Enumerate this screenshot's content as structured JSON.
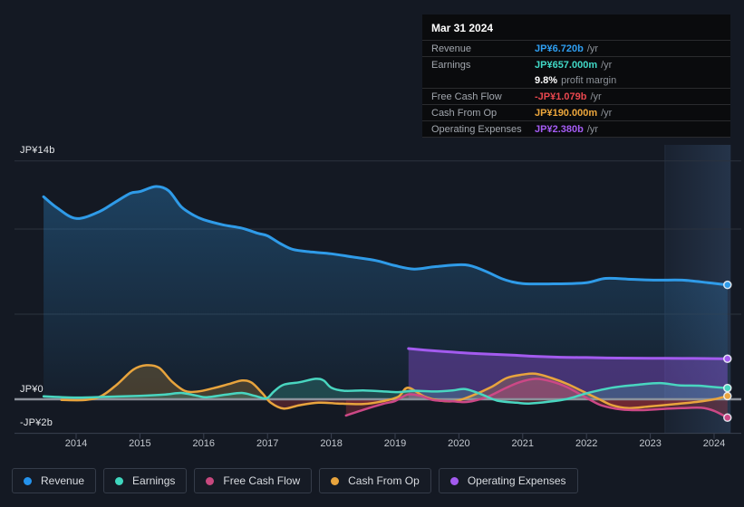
{
  "tooltip": {
    "date": "Mar 31 2024",
    "rows": [
      {
        "label": "Revenue",
        "value": "JP¥6.720b",
        "suffix": "/yr",
        "color": "#2F9FF2",
        "bordered": true
      },
      {
        "label": "Earnings",
        "value": "JP¥657.000m",
        "suffix": "/yr",
        "color": "#41D9C7",
        "bordered": false
      },
      {
        "label": "",
        "value": "9.8%",
        "suffix": "profit margin",
        "color": "#FFFFFF",
        "bordered": true
      },
      {
        "label": "Free Cash Flow",
        "value": "-JP¥1.079b",
        "suffix": "/yr",
        "color": "#E8474E",
        "bordered": true
      },
      {
        "label": "Cash From Op",
        "value": "JP¥190.000m",
        "suffix": "/yr",
        "color": "#EDA73C",
        "bordered": true
      },
      {
        "label": "Operating Expenses",
        "value": "JP¥2.380b",
        "suffix": "/yr",
        "color": "#A55CF4",
        "bordered": true
      }
    ]
  },
  "legend": {
    "items": [
      {
        "label": "Revenue",
        "color": "#2492EC"
      },
      {
        "label": "Earnings",
        "color": "#3FD6BE"
      },
      {
        "label": "Free Cash Flow",
        "color": "#C7487E"
      },
      {
        "label": "Cash From Op",
        "color": "#E8A43D"
      },
      {
        "label": "Operating Expenses",
        "color": "#A35BEF"
      }
    ]
  },
  "chart_data": {
    "type": "area",
    "unit": "JP¥ billions per year",
    "x_ticks": [
      2014,
      2015,
      2016,
      2017,
      2018,
      2019,
      2020,
      2021,
      2022,
      2023,
      2024
    ],
    "y_tick_labels": [
      {
        "text": "JP¥14b",
        "value": 14
      },
      {
        "text": "JP¥0",
        "value": 0
      },
      {
        "text": "-JP¥2b",
        "value": -2
      }
    ],
    "gridline_values": [
      14,
      10,
      5
    ],
    "baseline_value": -2,
    "ylim": [
      -2,
      14.9
    ],
    "xlim": [
      2013.45,
      2024.45
    ],
    "legend_position": "bottom",
    "grid_color": "#2B323E",
    "axis_color": "#3A4150",
    "zero_line_color": "#8C929B",
    "negative_fill": "rgba(200,55,65,0.30)",
    "highlight_band_years": [
      2023.23,
      2024.26
    ],
    "series": [
      {
        "name": "Revenue",
        "color": "#2F9BE8",
        "fill": "rgba(47,143,214,0.30)",
        "width": 3,
        "points": [
          [
            2013.49,
            11.9
          ],
          [
            2013.7,
            11.25
          ],
          [
            2014.0,
            10.62
          ],
          [
            2014.35,
            11.0
          ],
          [
            2014.6,
            11.55
          ],
          [
            2014.85,
            12.1
          ],
          [
            2015.0,
            12.2
          ],
          [
            2015.25,
            12.5
          ],
          [
            2015.45,
            12.25
          ],
          [
            2015.65,
            11.3
          ],
          [
            2015.85,
            10.8
          ],
          [
            2016.0,
            10.55
          ],
          [
            2016.3,
            10.25
          ],
          [
            2016.6,
            10.05
          ],
          [
            2016.85,
            9.75
          ],
          [
            2017.0,
            9.6
          ],
          [
            2017.2,
            9.15
          ],
          [
            2017.4,
            8.8
          ],
          [
            2017.7,
            8.65
          ],
          [
            2018.0,
            8.55
          ],
          [
            2018.35,
            8.35
          ],
          [
            2018.7,
            8.15
          ],
          [
            2019.0,
            7.85
          ],
          [
            2019.3,
            7.65
          ],
          [
            2019.65,
            7.8
          ],
          [
            2020.1,
            7.9
          ],
          [
            2020.4,
            7.55
          ],
          [
            2020.7,
            7.05
          ],
          [
            2021.0,
            6.8
          ],
          [
            2021.5,
            6.78
          ],
          [
            2022.0,
            6.85
          ],
          [
            2022.3,
            7.1
          ],
          [
            2022.7,
            7.05
          ],
          [
            2023.1,
            7.0
          ],
          [
            2023.5,
            7.0
          ],
          [
            2023.9,
            6.85
          ],
          [
            2024.21,
            6.72
          ]
        ]
      },
      {
        "name": "Operating Expenses",
        "color": "#A35BEF",
        "fill": "rgba(147,82,224,0.38)",
        "width": 3,
        "points": [
          [
            2019.21,
            2.98
          ],
          [
            2019.5,
            2.88
          ],
          [
            2019.9,
            2.77
          ],
          [
            2020.3,
            2.68
          ],
          [
            2020.8,
            2.6
          ],
          [
            2021.2,
            2.52
          ],
          [
            2021.6,
            2.47
          ],
          [
            2022.0,
            2.45
          ],
          [
            2022.5,
            2.42
          ],
          [
            2023.0,
            2.41
          ],
          [
            2023.5,
            2.4
          ],
          [
            2024.0,
            2.39
          ],
          [
            2024.21,
            2.38
          ]
        ]
      },
      {
        "name": "Cash From Op",
        "color": "#E8A43D",
        "fill": "rgba(235,168,60,0.22)",
        "width": 2.5,
        "points": [
          [
            2013.77,
            -0.04
          ],
          [
            2014.15,
            -0.04
          ],
          [
            2014.4,
            0.2
          ],
          [
            2014.65,
            0.9
          ],
          [
            2014.9,
            1.75
          ],
          [
            2015.1,
            2.0
          ],
          [
            2015.3,
            1.85
          ],
          [
            2015.5,
            1.05
          ],
          [
            2015.7,
            0.5
          ],
          [
            2015.9,
            0.45
          ],
          [
            2016.15,
            0.65
          ],
          [
            2016.4,
            0.9
          ],
          [
            2016.6,
            1.1
          ],
          [
            2016.75,
            0.98
          ],
          [
            2016.92,
            0.35
          ],
          [
            2017.05,
            -0.2
          ],
          [
            2017.25,
            -0.55
          ],
          [
            2017.5,
            -0.35
          ],
          [
            2017.8,
            -0.2
          ],
          [
            2018.1,
            -0.25
          ],
          [
            2018.5,
            -0.28
          ],
          [
            2018.8,
            -0.12
          ],
          [
            2019.05,
            0.15
          ],
          [
            2019.2,
            0.68
          ],
          [
            2019.45,
            0.18
          ],
          [
            2019.7,
            -0.08
          ],
          [
            2019.95,
            -0.1
          ],
          [
            2020.2,
            0.2
          ],
          [
            2020.5,
            0.7
          ],
          [
            2020.75,
            1.25
          ],
          [
            2021.0,
            1.45
          ],
          [
            2021.2,
            1.5
          ],
          [
            2021.45,
            1.25
          ],
          [
            2021.7,
            0.9
          ],
          [
            2021.95,
            0.45
          ],
          [
            2022.2,
            0.0
          ],
          [
            2022.4,
            -0.35
          ],
          [
            2022.65,
            -0.52
          ],
          [
            2023.0,
            -0.42
          ],
          [
            2023.4,
            -0.28
          ],
          [
            2023.75,
            -0.15
          ],
          [
            2024.0,
            0.0
          ],
          [
            2024.21,
            0.19
          ]
        ]
      },
      {
        "name": "Free Cash Flow",
        "color": "#CC4886",
        "fill": "rgba(208,74,136,0.28)",
        "width": 2.5,
        "points": [
          [
            2018.23,
            -0.96
          ],
          [
            2018.5,
            -0.62
          ],
          [
            2018.8,
            -0.28
          ],
          [
            2019.0,
            -0.1
          ],
          [
            2019.2,
            0.28
          ],
          [
            2019.4,
            0.2
          ],
          [
            2019.6,
            -0.05
          ],
          [
            2019.9,
            -0.12
          ],
          [
            2020.15,
            -0.15
          ],
          [
            2020.45,
            0.15
          ],
          [
            2020.7,
            0.6
          ],
          [
            2020.95,
            1.0
          ],
          [
            2021.2,
            1.2
          ],
          [
            2021.45,
            1.05
          ],
          [
            2021.7,
            0.7
          ],
          [
            2022.04,
            0.0
          ],
          [
            2022.25,
            -0.38
          ],
          [
            2022.55,
            -0.6
          ],
          [
            2022.85,
            -0.64
          ],
          [
            2023.15,
            -0.58
          ],
          [
            2023.5,
            -0.52
          ],
          [
            2023.8,
            -0.5
          ],
          [
            2024.0,
            -0.68
          ],
          [
            2024.21,
            -1.08
          ]
        ]
      },
      {
        "name": "Earnings",
        "color": "#49D6C0",
        "fill": "rgba(70,214,190,0.22)",
        "width": 2.5,
        "points": [
          [
            2013.49,
            0.17
          ],
          [
            2014.0,
            0.1
          ],
          [
            2014.5,
            0.15
          ],
          [
            2015.0,
            0.2
          ],
          [
            2015.4,
            0.28
          ],
          [
            2015.65,
            0.37
          ],
          [
            2015.9,
            0.2
          ],
          [
            2016.05,
            0.12
          ],
          [
            2016.35,
            0.27
          ],
          [
            2016.6,
            0.37
          ],
          [
            2016.8,
            0.2
          ],
          [
            2016.98,
            0.05
          ],
          [
            2017.1,
            0.45
          ],
          [
            2017.25,
            0.85
          ],
          [
            2017.5,
            1.0
          ],
          [
            2017.75,
            1.2
          ],
          [
            2017.88,
            1.1
          ],
          [
            2018.0,
            0.68
          ],
          [
            2018.2,
            0.5
          ],
          [
            2018.5,
            0.52
          ],
          [
            2018.8,
            0.47
          ],
          [
            2019.05,
            0.42
          ],
          [
            2019.3,
            0.5
          ],
          [
            2019.6,
            0.46
          ],
          [
            2019.9,
            0.52
          ],
          [
            2020.1,
            0.6
          ],
          [
            2020.35,
            0.3
          ],
          [
            2020.6,
            -0.08
          ],
          [
            2020.9,
            -0.2
          ],
          [
            2021.1,
            -0.25
          ],
          [
            2021.4,
            -0.15
          ],
          [
            2021.7,
            0.02
          ],
          [
            2022.0,
            0.35
          ],
          [
            2022.4,
            0.68
          ],
          [
            2022.8,
            0.85
          ],
          [
            2023.15,
            0.95
          ],
          [
            2023.45,
            0.82
          ],
          [
            2023.75,
            0.8
          ],
          [
            2024.0,
            0.72
          ],
          [
            2024.21,
            0.66
          ]
        ]
      }
    ]
  }
}
